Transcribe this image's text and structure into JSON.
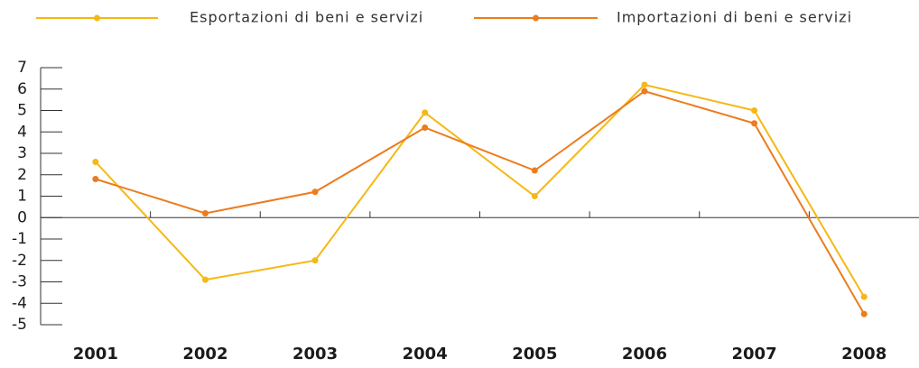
{
  "chart_data": {
    "type": "line",
    "categories": [
      "2001",
      "2002",
      "2003",
      "2004",
      "2005",
      "2006",
      "2007",
      "2008"
    ],
    "series": [
      {
        "name": "Esportazioni di beni e servizi",
        "color": "#f6b814",
        "values": [
          2.6,
          -2.9,
          -2.0,
          4.9,
          1.0,
          6.2,
          5.0,
          -3.7
        ]
      },
      {
        "name": "Importazioni di beni e servizi",
        "color": "#ec7c1e",
        "values": [
          1.8,
          0.2,
          1.2,
          4.2,
          2.2,
          5.9,
          4.4,
          -4.5
        ]
      }
    ],
    "ylim": [
      -5,
      7
    ],
    "yticks": [
      -5,
      -4,
      -3,
      -2,
      -1,
      0,
      1,
      2,
      3,
      4,
      5,
      6,
      7
    ],
    "legend": "top"
  }
}
